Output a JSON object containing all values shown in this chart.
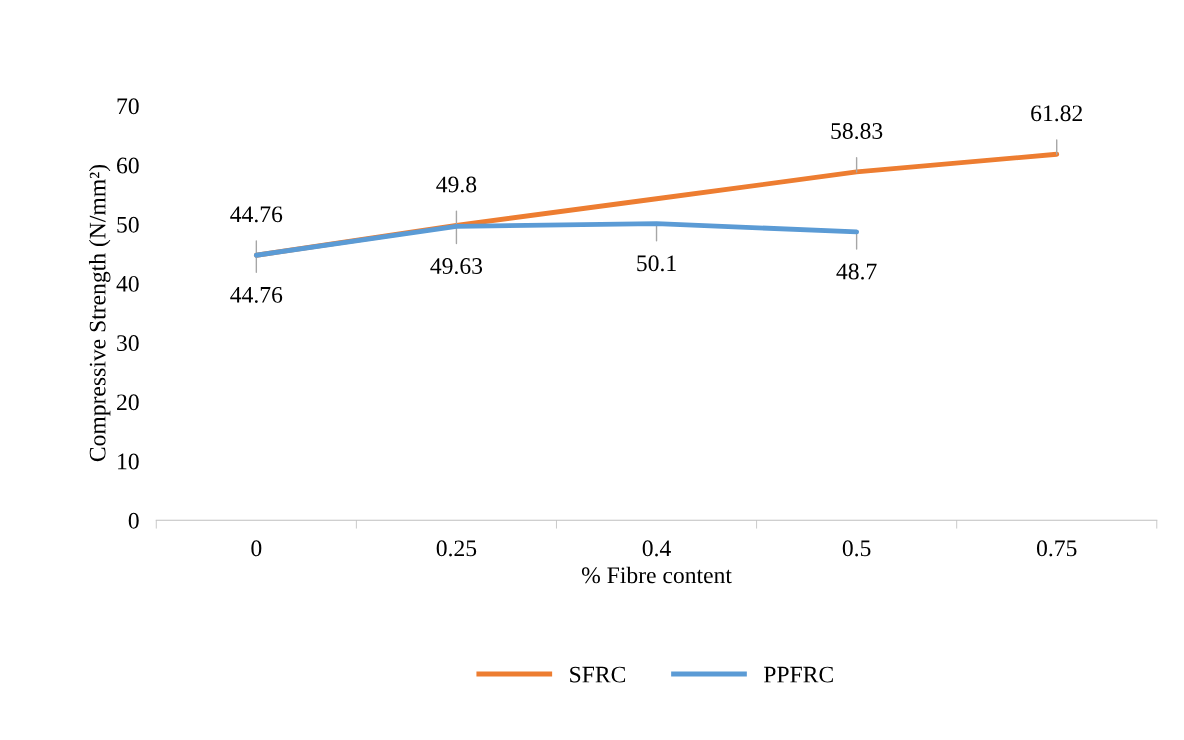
{
  "chart_data": {
    "type": "line",
    "xlabel": "% Fibre content",
    "ylabel": "Compressive Strength (N/mm²)",
    "categories": [
      "0",
      "0.25",
      "0.4",
      "0.5",
      "0.75"
    ],
    "series": [
      {
        "name": "SFRC",
        "color": "#ed7d31",
        "values": [
          44.76,
          49.8,
          54.3,
          58.83,
          61.82
        ],
        "value_labels": [
          "44.76",
          "49.8",
          null,
          "58.83",
          "61.82"
        ]
      },
      {
        "name": "PPFRC",
        "color": "#5b9bd5",
        "values": [
          44.76,
          49.63,
          50.1,
          48.7,
          null
        ],
        "value_labels": [
          "44.76",
          "49.63",
          "50.1",
          "48.7",
          null
        ]
      }
    ],
    "ylim": [
      0,
      70
    ],
    "yticks": [
      0,
      10,
      20,
      30,
      40,
      50,
      60,
      70
    ],
    "grid": false,
    "legend": "bottom",
    "marker": "none",
    "line_style": "solid"
  }
}
